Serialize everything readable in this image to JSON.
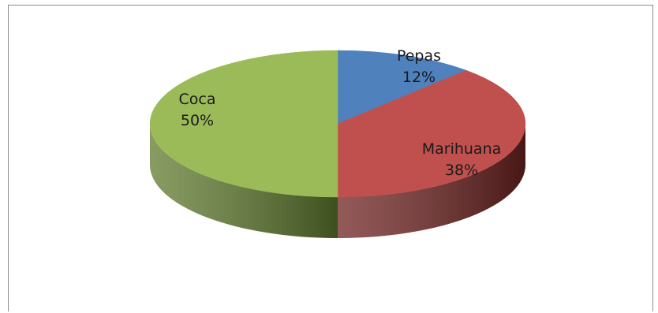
{
  "chart_data": {
    "type": "pie",
    "style": "3d",
    "title": "",
    "slices": [
      {
        "label": "Pepas",
        "value": 12,
        "percent_label": "12%",
        "color": "#4f81bd",
        "side_color": "#2c4d75"
      },
      {
        "label": "Marihuana",
        "value": 38,
        "percent_label": "38%",
        "color": "#c0504d",
        "side_color": "#6e2321"
      },
      {
        "label": "Coca",
        "value": 50,
        "percent_label": "50%",
        "color": "#9bbb59",
        "side_color": "#5f7a2e"
      }
    ]
  }
}
